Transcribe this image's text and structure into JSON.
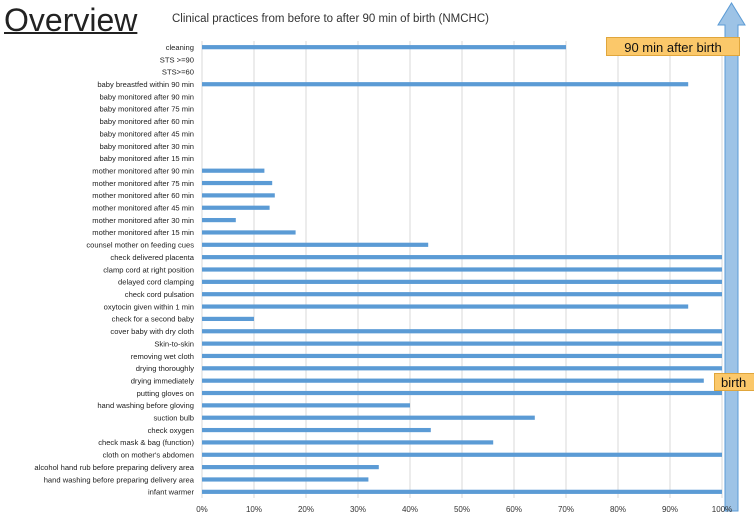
{
  "header": {
    "title": "Overview",
    "subtitle": "Clinical practices from before to after 90 min of birth (NMCHC)"
  },
  "annotations": {
    "top_label": "90 min after birth",
    "bottom_label": "birth"
  },
  "colors": {
    "bar": "#5b9bd5",
    "arrow_fill": "#9dc3e6",
    "arrow_stroke": "#5b9bd5",
    "callout": "#fbc86a"
  },
  "chart_data": {
    "type": "bar",
    "orientation": "horizontal",
    "xlim": [
      0,
      100
    ],
    "x_ticks": [
      "0%",
      "10%",
      "20%",
      "30%",
      "40%",
      "50%",
      "60%",
      "70%",
      "80%",
      "90%",
      "100%"
    ],
    "grid": true,
    "categories": [
      "cleaning",
      "STS >=90",
      "STS>=60",
      "baby breastfed within 90 min",
      "baby monitored after 90 min",
      "baby monitored after 75 min",
      "baby monitored after 60 min",
      "baby monitored after 45 min",
      "baby monitored after 30 min",
      "baby monitored after 15 min",
      "mother monitored after 90 min",
      "mother monitored after 75 min",
      "mother monitored after 60 min",
      "mother monitored after 45 min",
      "mother monitored after 30 min",
      "mother monitored after 15 min",
      "counsel mother on feeding cues",
      "check delivered placenta",
      "clamp cord at right position",
      "delayed cord clamping",
      "check cord pulsation",
      "oxytocin given within 1 min",
      "check for a second baby",
      "cover baby with dry cloth",
      "Skin-to-skin",
      "removing wet cloth",
      "drying thoroughly",
      "drying immediately",
      "putting gloves on",
      "hand washing before gloving",
      "suction bulb",
      "check oxygen",
      "check mask & bag (function)",
      "cloth on mother's abdomen",
      "alcohol hand rub before preparing delivery area",
      "hand washing before preparing delivery area",
      "infant warmer"
    ],
    "values": [
      70,
      0,
      0,
      93.5,
      0,
      0,
      0,
      0,
      0,
      0,
      12,
      13.5,
      14,
      13,
      6.5,
      18,
      43.5,
      100,
      100,
      100,
      100,
      93.5,
      10,
      100,
      100,
      100,
      100,
      96.5,
      100,
      40,
      64,
      44,
      56,
      100,
      34,
      32,
      100
    ]
  }
}
